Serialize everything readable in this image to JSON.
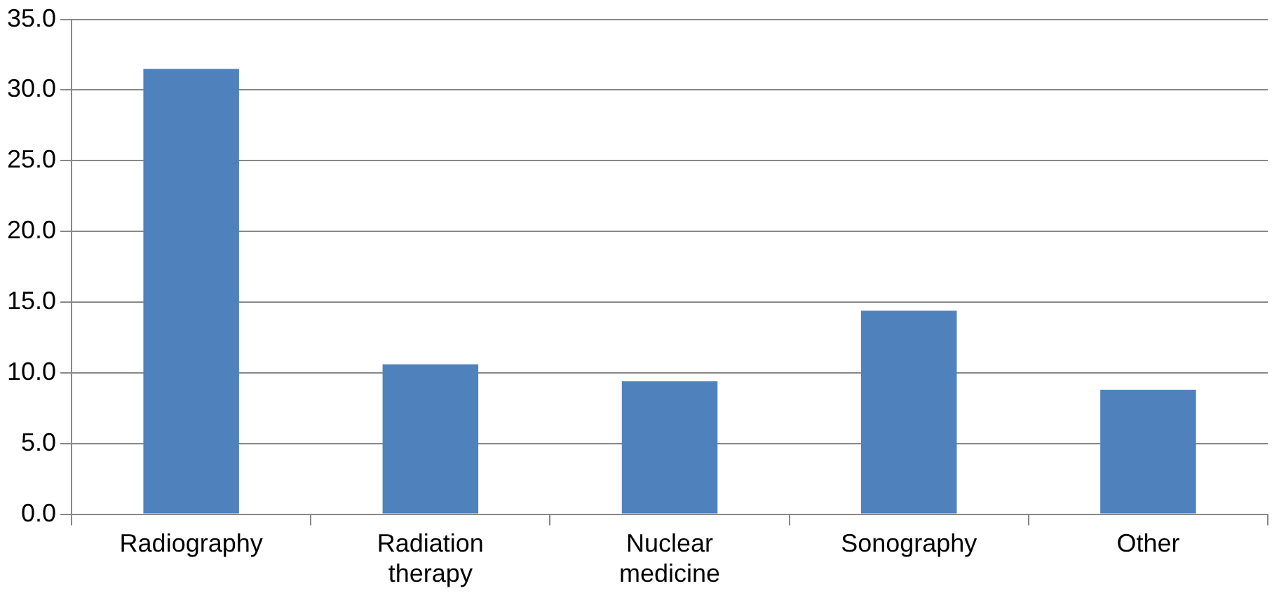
{
  "chart_data": {
    "type": "bar",
    "categories": [
      "Radiography",
      "Radiation therapy",
      "Nuclear medicine",
      "Sonography",
      "Other"
    ],
    "values": [
      31.5,
      10.6,
      9.4,
      14.4,
      8.8
    ],
    "color": "#4f81bd",
    "ylim": [
      0,
      35
    ],
    "yticks": [
      {
        "value": 0,
        "label": "0.0"
      },
      {
        "value": 5,
        "label": "5.0"
      },
      {
        "value": 10,
        "label": "10.0"
      },
      {
        "value": 15,
        "label": "15.0"
      },
      {
        "value": 20,
        "label": "20.0"
      },
      {
        "value": 25,
        "label": "25.0"
      },
      {
        "value": 30,
        "label": "30.0"
      },
      {
        "value": 35,
        "label": "35.0"
      }
    ],
    "grid": "y",
    "legend": false
  }
}
